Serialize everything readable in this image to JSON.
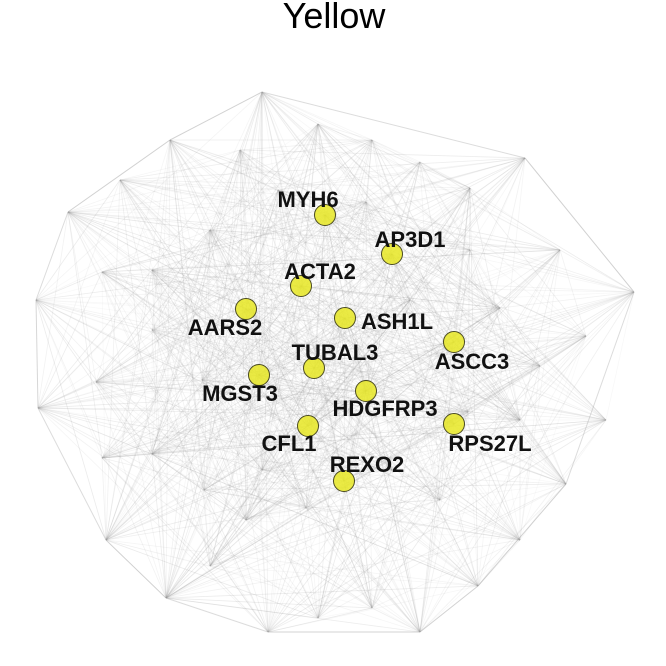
{
  "title": "Yellow",
  "colors": {
    "node_fill": "#e8e824",
    "node_stroke": "#4a4a20",
    "edge": "#9a9a9a"
  },
  "labeled_nodes": [
    {
      "id": "myh6",
      "label": "MYH6"
    },
    {
      "id": "ap3d1",
      "label": "AP3D1"
    },
    {
      "id": "acta2",
      "label": "ACTA2"
    },
    {
      "id": "aars2",
      "label": "AARS2"
    },
    {
      "id": "ash1l",
      "label": "ASH1L"
    },
    {
      "id": "ascc3",
      "label": "ASCC3"
    },
    {
      "id": "tubal3",
      "label": "TUBAL3"
    },
    {
      "id": "mgst3",
      "label": "MGST3"
    },
    {
      "id": "hdgfrp3",
      "label": "HDGFRP3"
    },
    {
      "id": "cfl1",
      "label": "CFL1"
    },
    {
      "id": "rps27l",
      "label": "RPS27L"
    },
    {
      "id": "rexo2",
      "label": "REXO2"
    }
  ]
}
